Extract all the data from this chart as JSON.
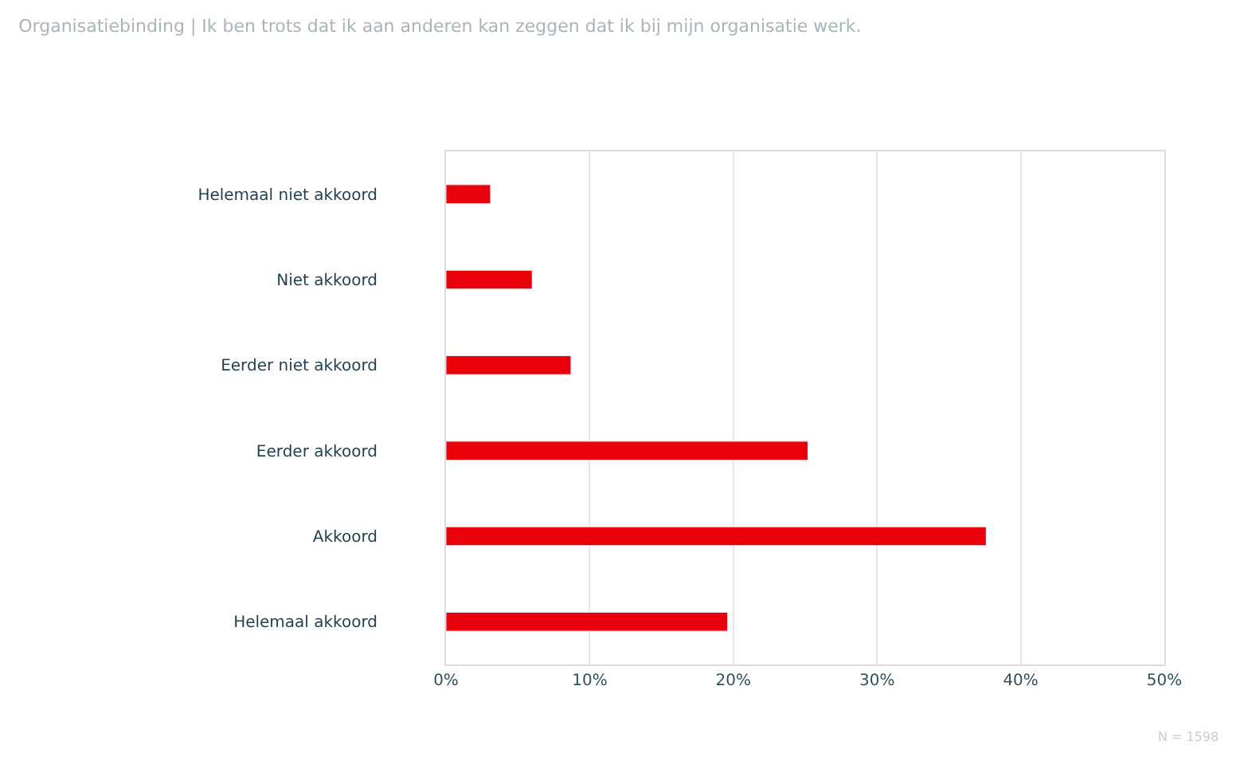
{
  "chart_data": {
    "type": "bar",
    "orientation": "horizontal",
    "title": "Organisatiebinding | Ik ben trots dat ik aan anderen kan zeggen dat ik bij mijn organisatie werk.",
    "categories": [
      "Helemaal niet akkoord",
      "Niet akkoord",
      "Eerder niet akkoord",
      "Eerder akkoord",
      "Akkoord",
      "Helemaal akkoord"
    ],
    "values": [
      3.1,
      6.0,
      8.7,
      25.2,
      37.6,
      19.6
    ],
    "color": "#e8000b",
    "xlim": [
      0,
      50
    ],
    "xticks": [
      {
        "value": 0,
        "label": "0%"
      },
      {
        "value": 10,
        "label": "10%"
      },
      {
        "value": 20,
        "label": "20%"
      },
      {
        "value": 30,
        "label": "30%"
      },
      {
        "value": 40,
        "label": "40%"
      },
      {
        "value": 50,
        "label": "50%"
      }
    ],
    "grid": "x",
    "annotations": [
      "N = 1598"
    ]
  }
}
